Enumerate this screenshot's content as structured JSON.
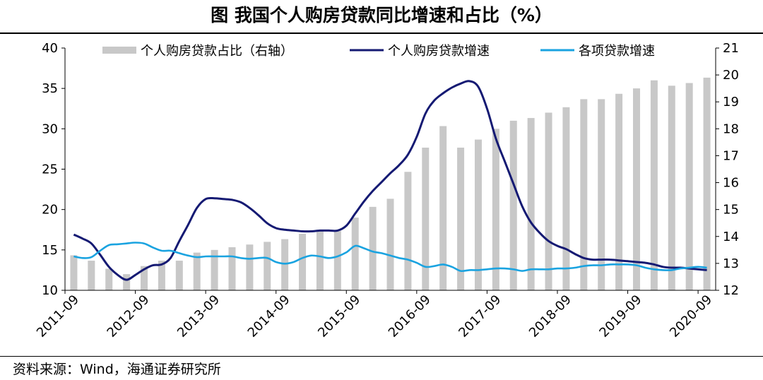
{
  "title": "图  我国个人购房贷款同比增速和占比（%）",
  "source": "资料来源：Wind，海通证券研究所",
  "colors": {
    "bar": "#c8c8c8",
    "housing_loan_growth": "#151a73",
    "all_loan_growth": "#1aa3e0",
    "axis": "#000000"
  },
  "chart_data": {
    "type": "bar+line",
    "title": "图  我国个人购房贷款同比增速和占比（%）",
    "x_tick_labels": [
      "2011-09",
      "2012-09",
      "2013-09",
      "2014-09",
      "2015-09",
      "2016-09",
      "2017-09",
      "2018-09",
      "2019-09",
      "2020-09"
    ],
    "quarters": [
      "2011-09",
      "2011-12",
      "2012-03",
      "2012-06",
      "2012-09",
      "2012-12",
      "2013-03",
      "2013-06",
      "2013-09",
      "2013-12",
      "2014-03",
      "2014-06",
      "2014-09",
      "2014-12",
      "2015-03",
      "2015-06",
      "2015-09",
      "2015-12",
      "2016-03",
      "2016-06",
      "2016-09",
      "2016-12",
      "2017-03",
      "2017-06",
      "2017-09",
      "2017-12",
      "2018-03",
      "2018-06",
      "2018-09",
      "2018-12",
      "2019-03",
      "2019-06",
      "2019-09",
      "2019-12",
      "2020-03",
      "2020-06",
      "2020-09"
    ],
    "y_left": {
      "min": 10,
      "max": 40,
      "ticks": [
        10,
        15,
        20,
        25,
        30,
        35,
        40
      ]
    },
    "y_right": {
      "min": 12,
      "max": 21,
      "ticks": [
        12,
        13,
        14,
        15,
        16,
        17,
        18,
        19,
        20,
        21
      ]
    },
    "legend": [
      "个人购房贷款占比（右轴）",
      "个人购房贷款增速",
      "各项贷款增速"
    ],
    "legend_position": "top",
    "grid": false,
    "series": [
      {
        "name": "个人购房贷款占比（右轴）",
        "type": "bar",
        "axis": "right",
        "values": [
          13.3,
          13.1,
          12.8,
          12.6,
          12.9,
          13.1,
          13.1,
          13.4,
          13.5,
          13.6,
          13.7,
          13.8,
          13.9,
          14.1,
          14.2,
          14.2,
          14.7,
          15.1,
          15.4,
          16.4,
          17.3,
          18.1,
          17.3,
          17.6,
          18.0,
          18.3,
          18.4,
          18.6,
          18.8,
          19.1,
          19.1,
          19.3,
          19.5,
          19.8,
          19.6,
          19.7,
          19.9
        ]
      },
      {
        "name": "个人购房贷款增速",
        "type": "line",
        "axis": "left",
        "x": [
          0,
          0.5,
          1,
          1.5,
          2,
          2.5,
          3,
          3.5,
          4,
          4.5,
          5,
          5.5,
          6,
          6.5,
          7,
          7.5,
          8,
          8.5,
          9,
          9.5,
          10,
          10.5,
          11,
          11.5,
          12,
          12.5,
          13,
          13.5,
          14,
          14.5,
          15,
          15.5,
          16,
          16.5,
          17,
          17.5,
          18,
          18.5,
          19,
          19.5,
          20,
          20.5,
          21,
          21.5,
          22,
          22.5,
          23,
          23.5,
          24,
          24.5,
          25,
          25.5,
          26,
          26.5,
          27,
          27.5,
          28,
          28.5,
          29,
          29.5,
          30,
          30.5,
          31,
          31.5,
          32,
          32.5,
          33,
          33.5,
          34,
          34.5,
          35,
          35.5,
          36
        ],
        "values": [
          16.9,
          16.4,
          15.8,
          14.4,
          12.9,
          11.9,
          11.3,
          11.9,
          12.6,
          13.1,
          13.2,
          14.0,
          16.1,
          18.1,
          20.2,
          21.3,
          21.4,
          21.3,
          21.2,
          20.9,
          20.2,
          19.3,
          18.3,
          17.7,
          17.5,
          17.4,
          17.3,
          17.3,
          17.4,
          17.4,
          17.4,
          18.0,
          19.5,
          21.0,
          22.3,
          23.4,
          24.5,
          25.5,
          26.8,
          29.0,
          31.9,
          33.5,
          34.4,
          35.1,
          35.6,
          35.9,
          35.2,
          32.5,
          28.8,
          26.0,
          23.2,
          20.4,
          18.4,
          17.1,
          16.1,
          15.5,
          15.1,
          14.5,
          14.0,
          13.8,
          13.8,
          13.8,
          13.7,
          13.6,
          13.5,
          13.4,
          13.2,
          12.9,
          12.8,
          12.8,
          12.7,
          12.6,
          12.5
        ]
      },
      {
        "name": "各项贷款增速",
        "type": "line",
        "axis": "left",
        "x": [
          0,
          0.5,
          1,
          1.5,
          2,
          2.5,
          3,
          3.5,
          4,
          4.5,
          5,
          5.5,
          6,
          6.5,
          7,
          7.5,
          8,
          8.5,
          9,
          9.5,
          10,
          10.5,
          11,
          11.5,
          12,
          12.5,
          13,
          13.5,
          14,
          14.5,
          15,
          15.5,
          16,
          16.5,
          17,
          17.5,
          18,
          18.5,
          19,
          19.5,
          20,
          20.5,
          21,
          21.5,
          22,
          22.5,
          23,
          23.5,
          24,
          24.5,
          25,
          25.5,
          26,
          26.5,
          27,
          27.5,
          28,
          28.5,
          29,
          29.5,
          30,
          30.5,
          31,
          31.5,
          32,
          32.5,
          33,
          33.5,
          34,
          34.5,
          35,
          35.5,
          36
        ],
        "values": [
          14.2,
          14.0,
          14.1,
          14.9,
          15.6,
          15.7,
          15.8,
          15.9,
          15.8,
          15.3,
          14.9,
          14.9,
          14.6,
          14.3,
          14.1,
          14.2,
          14.2,
          14.2,
          14.2,
          14.0,
          13.9,
          14.0,
          14.0,
          13.5,
          13.3,
          13.5,
          14.0,
          14.3,
          14.2,
          14.0,
          14.2,
          14.7,
          15.5,
          15.2,
          14.8,
          14.6,
          14.3,
          14.0,
          13.8,
          13.4,
          12.9,
          13.0,
          13.2,
          12.9,
          12.4,
          12.5,
          12.5,
          12.6,
          12.7,
          12.7,
          12.6,
          12.4,
          12.6,
          12.6,
          12.6,
          12.7,
          12.7,
          12.8,
          13.0,
          13.1,
          13.1,
          13.2,
          13.2,
          13.2,
          13.1,
          12.8,
          12.6,
          12.5,
          12.5,
          12.7,
          12.8,
          12.9,
          12.8
        ]
      }
    ]
  }
}
